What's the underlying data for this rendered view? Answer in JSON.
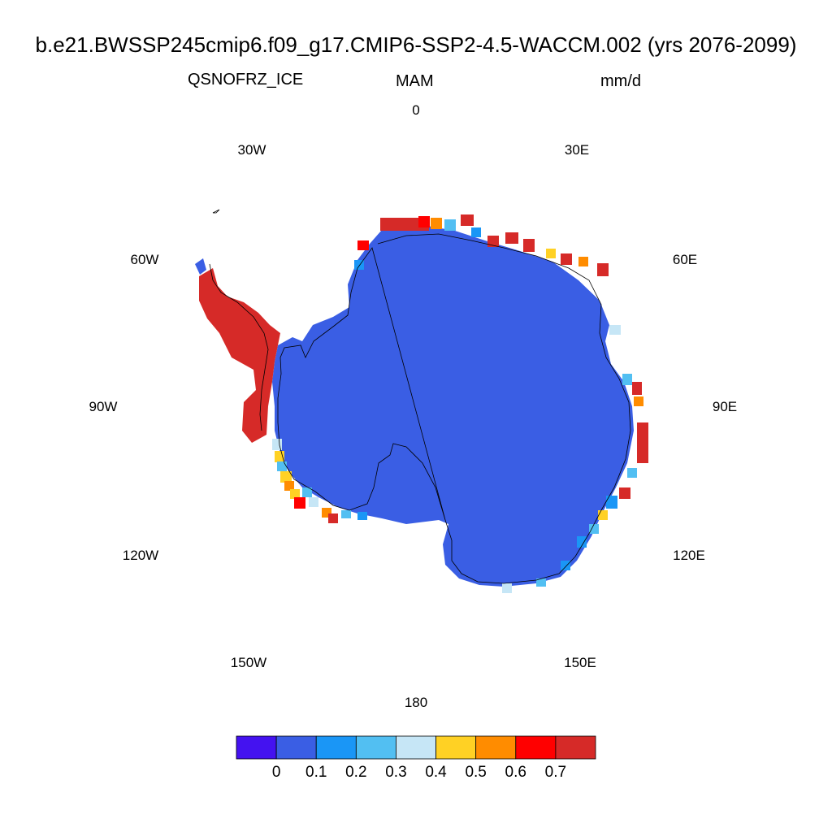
{
  "title": "b.e21.BWSSP245cmip6.f09_g17.CMIP6-SSP2-4.5-WACCM.002 (yrs 2076-2099)",
  "variable": "QSNOFRZ_ICE",
  "season": "MAM",
  "units": "mm/d",
  "projection": "polar-stereographic-south",
  "longitude_labels": [
    "0",
    "30E",
    "60E",
    "90E",
    "120E",
    "150E",
    "180",
    "150W",
    "120W",
    "90W",
    "60W",
    "30W"
  ],
  "colorbar": {
    "colors": [
      "#4412f0",
      "#3a5ee4",
      "#1a96f6",
      "#52bff2",
      "#c6e6f6",
      "#ffd124",
      "#ff8c00",
      "#ff0000",
      "#d62a28"
    ],
    "tick_labels": [
      "0",
      "0.1",
      "0.2",
      "0.3",
      "0.4",
      "0.5",
      "0.6",
      "0.7"
    ]
  },
  "field_summary": {
    "interior_value_bin": "0-0.1",
    "interior_color": "#3a5ee4",
    "coastal_max_bin": ">0.7",
    "coastal_max_color": "#d62a28"
  }
}
